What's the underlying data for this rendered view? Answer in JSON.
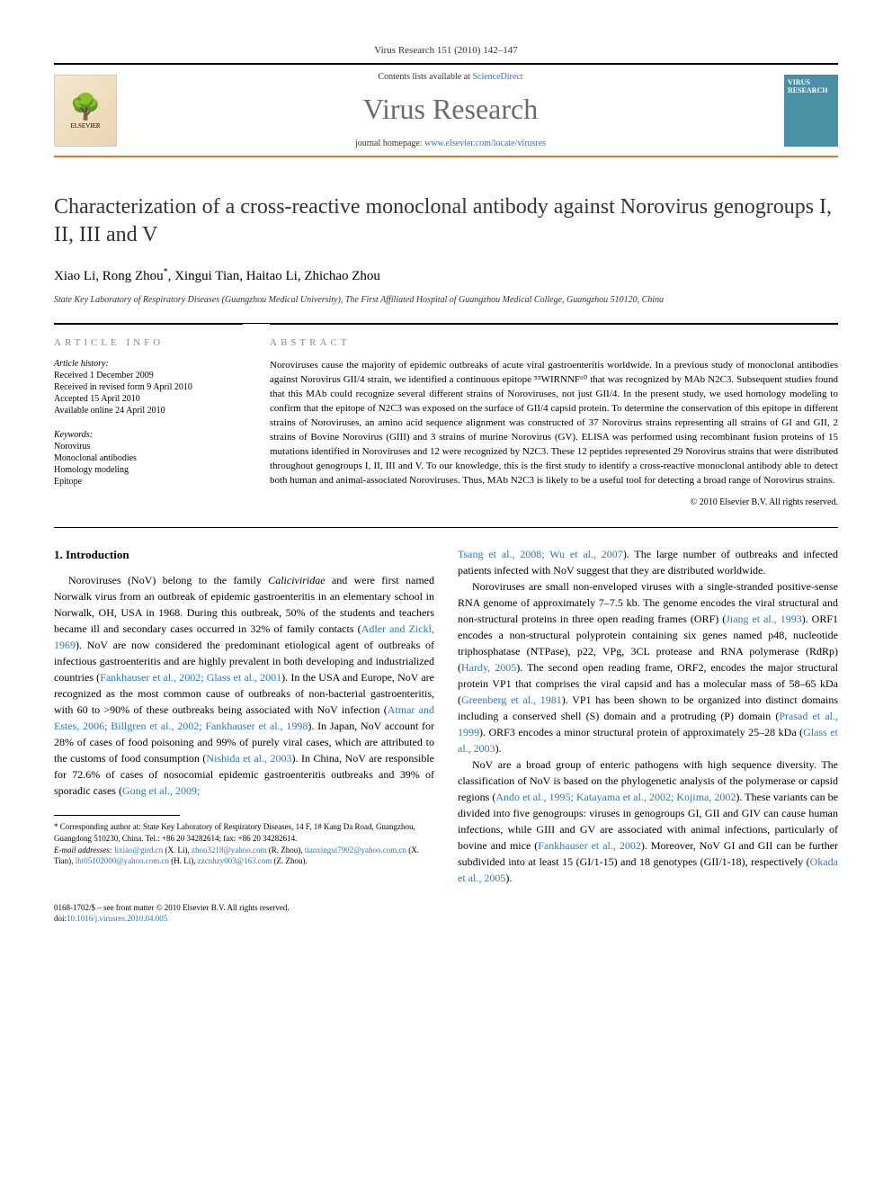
{
  "journal_ref": "Virus Research 151 (2010) 142–147",
  "header": {
    "contents_prefix": "Contents lists available at ",
    "contents_link": "ScienceDirect",
    "journal_name": "Virus Research",
    "homepage_prefix": "journal homepage: ",
    "homepage_url": "www.elsevier.com/locate/virusres",
    "elsevier_label": "ELSEVIER",
    "cover_text": "VIRUS RESEARCH"
  },
  "title": "Characterization of a cross-reactive monoclonal antibody against Norovirus genogroups I, II, III and V",
  "authors": "Xiao Li, Rong Zhou*, Xingui Tian, Haitao Li, Zhichao Zhou",
  "affiliation": "State Key Laboratory of Respiratory Diseases (Guangzhou Medical University), The First Affiliated Hospital of Guangzhou Medical College, Guangzhou 510120, China",
  "article_info": {
    "heading": "ARTICLE INFO",
    "history_label": "Article history:",
    "received": "Received 1 December 2009",
    "revised": "Received in revised form 9 April 2010",
    "accepted": "Accepted 15 April 2010",
    "online": "Available online 24 April 2010",
    "keywords_label": "Keywords:",
    "keywords": [
      "Norovirus",
      "Monoclonal antibodies",
      "Homology modeling",
      "Epitope"
    ]
  },
  "abstract": {
    "heading": "ABSTRACT",
    "text": "Noroviruses cause the majority of epidemic outbreaks of acute viral gastroenteritis worldwide. In a previous study of monoclonal antibodies against Norovirus GII/4 strain, we identified a continuous epitope ⁵⁵WIRNNF⁶⁰ that was recognized by MAb N2C3. Subsequent studies found that this MAb could recognize several different strains of Noroviruses, not just GII/4. In the present study, we used homology modeling to confirm that the epitope of N2C3 was exposed on the surface of GII/4 capsid protein. To determine the conservation of this epitope in different strains of Noroviruses, an amino acid sequence alignment was constructed of 37 Norovirus strains representing all strains of GI and GII, 2 strains of Bovine Norovirus (GIII) and 3 strains of murine Norovirus (GV). ELISA was performed using recombinant fusion proteins of 15 mutations identified in Noroviruses and 12 were recognized by N2C3. These 12 peptides represented 29 Norovirus strains that were distributed throughout genogroups I, II, III and V. To our knowledge, this is the first study to identify a cross-reactive monoclonal antibody able to detect both human and animal-associated Noroviruses. Thus, MAb N2C3 is likely to be a useful tool for detecting a broad range of Norovirus strains.",
    "copyright": "© 2010 Elsevier B.V. All rights reserved."
  },
  "intro": {
    "heading": "1. Introduction",
    "p1_a": "Noroviruses (NoV) belong to the family ",
    "p1_ital": "Caliciviridae",
    "p1_b": " and were first named Norwalk virus from an outbreak of epidemic gastroenteritis in an elementary school in Norwalk, OH, USA in 1968. During this outbreak, 50% of the students and teachers became ill and secondary cases occurred in 32% of family contacts (",
    "p1_ref1": "Adler and Zickl, 1969",
    "p1_c": "). NoV are now considered the predominant etiological agent of outbreaks of infectious gastroenteritis and are highly prevalent in both developing and industrialized countries (",
    "p1_ref2": "Fankhauser et al., 2002; Glass et al., 2001",
    "p1_d": "). In the USA and Europe, NoV are recognized as the most common cause of outbreaks of non-bacterial gastroenteritis, with 60 to >90% of these outbreaks being associated with NoV infection (",
    "p1_ref3": "Atmar and Estes, 2006; Billgren et al., 2002; Fankhauser et al., 1998",
    "p1_e": "). In Japan, NoV account for 28% of cases of food poisoning and 99% of purely viral cases, which are attributed to the customs of food consumption (",
    "p1_ref4": "Nishida et al., 2003",
    "p1_f": "). In China, NoV are responsible for 72.6% of cases of nosocomial epidemic gastroenteritis outbreaks and 39% of sporadic cases (",
    "p1_ref5": "Gong et al., 2009;",
    "p1_ref5b": "Tsang et al., 2008; Wu et al., 2007",
    "p1_g": "). The large number of outbreaks and infected patients infected with NoV suggest that they are distributed worldwide.",
    "p2_a": "Noroviruses are small non-enveloped viruses with a single-stranded positive-sense RNA genome of approximately 7–7.5 kb. The genome encodes the viral structural and non-structural proteins in three open reading frames (ORF) (",
    "p2_ref1": "Jiang et al., 1993",
    "p2_b": "). ORF1 encodes a non-structural polyprotein containing six genes named p48, nucleotide triphosphatase (NTPase), p22, VPg, 3CL protease and RNA polymerase (RdRp) (",
    "p2_ref2": "Hardy, 2005",
    "p2_c": "). The second open reading frame, ORF2, encodes the major structural protein VP1 that comprises the viral capsid and has a molecular mass of 58–65 kDa (",
    "p2_ref3": "Greenberg et al., 1981",
    "p2_d": "). VP1 has been shown to be organized into distinct domains including a conserved shell (S) domain and a protruding (P) domain (",
    "p2_ref4": "Prasad et al., 1999",
    "p2_e": "). ORF3 encodes a minor structural protein of approximately 25–28 kDa (",
    "p2_ref5": "Glass et al., 2003",
    "p2_f": ").",
    "p3_a": "NoV are a broad group of enteric pathogens with high sequence diversity. The classification of NoV is based on the phylogenetic analysis of the polymerase or capsid regions (",
    "p3_ref1": "Ando et al., 1995; Katayama et al., 2002; Kojima, 2002",
    "p3_b": "). These variants can be divided into five genogroups: viruses in genogroups GI, GII and GIV can cause human infections, while GIII and GV are associated with animal infections, particularly of bovine and mice (",
    "p3_ref2": "Fankhauser et al., 2002",
    "p3_c": "). Moreover, NoV GI and GII can be further subdivided into at least 15 (GI/1-15) and 18 genotypes (GII/1-18), respectively (",
    "p3_ref3": "Okada et al., 2005",
    "p3_d": ")."
  },
  "footnote": {
    "corr_label": "* Corresponding author at: State Key Laboratory of Respiratory Diseases, 14 F, 1# Kang Da Road, Guangzhou, Guangdong 510230, China. Tel.: +86 20 34282614; fax: +86 20 34282614.",
    "email_label": "E-mail addresses:",
    "emails": [
      {
        "addr": "lixiao@gird.cn",
        "who": "(X. Li)"
      },
      {
        "addr": "zhou3218@yahoo.com",
        "who": "(R. Zhou)"
      },
      {
        "addr": "tianxingui7902@yahoo.com.cn",
        "who": "(X. Tian)"
      },
      {
        "addr": "lht05102000@yahoo.com.cn",
        "who": "(H. Li)"
      },
      {
        "addr": "zzcnhzy003@163.com",
        "who": "(Z. Zhou)"
      }
    ]
  },
  "footer": {
    "issn_line": "0168-1702/$ – see front matter © 2010 Elsevier B.V. All rights reserved.",
    "doi_prefix": "doi:",
    "doi": "10.1016/j.virusres.2010.04.005"
  },
  "colors": {
    "link": "#2878c4",
    "accent": "#e87722",
    "journal_name": "#6b6b6b"
  }
}
